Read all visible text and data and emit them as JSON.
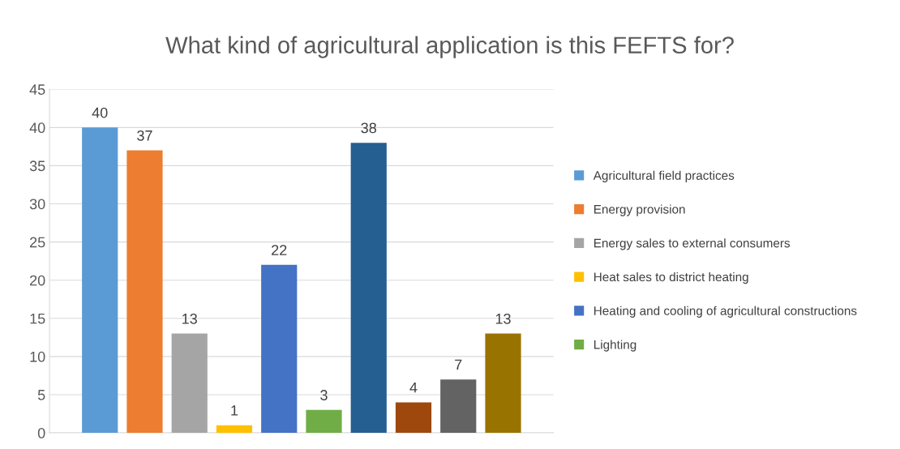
{
  "chart_data": {
    "type": "bar",
    "title": "What kind of agricultural application is this FEFTS for?",
    "categories": [
      null
    ],
    "series": [
      {
        "name": "Agricultural field practices",
        "color": "#5b9bd5",
        "values": [
          40
        ]
      },
      {
        "name": "Energy provision",
        "color": "#ed7d31",
        "values": [
          37
        ]
      },
      {
        "name": "Energy sales to external consumers",
        "color": "#a5a5a5",
        "values": [
          13
        ]
      },
      {
        "name": "Heat sales to district heating",
        "color": "#ffc000",
        "values": [
          1
        ]
      },
      {
        "name": "Heating and cooling of agricultural constructions",
        "color": "#4472c4",
        "values": [
          22
        ]
      },
      {
        "name": "Lighting",
        "color": "#70ad47",
        "values": [
          3
        ]
      },
      {
        "color": "#255e91",
        "values": [
          38
        ]
      },
      {
        "color": "#9e480e",
        "values": [
          4
        ]
      },
      {
        "color": "#636363",
        "values": [
          7
        ]
      },
      {
        "color": "#997300",
        "values": [
          13
        ]
      }
    ],
    "ylim": [
      0,
      45
    ],
    "yticks": [
      0,
      5,
      10,
      15,
      20,
      25,
      30,
      35,
      40,
      45
    ],
    "grid": "y",
    "legend": "right",
    "data_labels": true
  }
}
